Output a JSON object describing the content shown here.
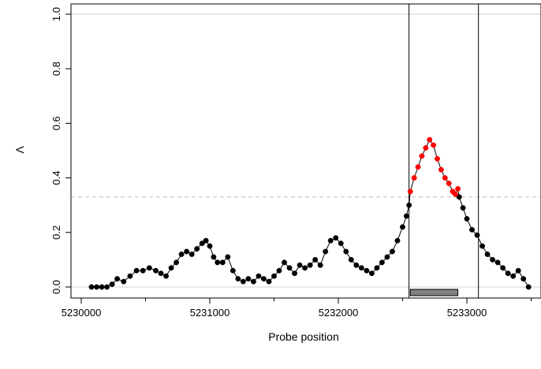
{
  "chart_data": {
    "type": "scatter",
    "title": "",
    "xlabel": "Probe position",
    "ylabel": "Λ",
    "xlim": [
      5230000,
      5233500
    ],
    "ylim": [
      0,
      1.0
    ],
    "x_ticks": [
      5230000,
      5231000,
      5232000,
      5233000
    ],
    "x_tick_labels": [
      "5230000",
      "5231000",
      "5232000",
      "5233000"
    ],
    "y_ticks": [
      0.0,
      0.2,
      0.4,
      0.6,
      0.8,
      1.0
    ],
    "y_tick_labels": [
      "0.0",
      "0.2",
      "0.4",
      "0.6",
      "0.8",
      "1.0"
    ],
    "gridlines_y": [
      0.0,
      1.0
    ],
    "threshold": 0.33,
    "region_lines": [
      5232550,
      5233090
    ],
    "region_bar": [
      5232560,
      5232930
    ],
    "colors": {
      "points": "#000000",
      "highlight": "#ff0000",
      "threshold_line": "#c8c8c8",
      "gridline": "#d0d0d0",
      "region_bar_fill": "#808080"
    },
    "series": [
      {
        "color": "#000000",
        "x": [
          5230080,
          5230120,
          5230160,
          5230200,
          5230240,
          5230280,
          5230330,
          5230380,
          5230430,
          5230480,
          5230530,
          5230580,
          5230620,
          5230660,
          5230700,
          5230740,
          5230780,
          5230820,
          5230860,
          5230900,
          5230940,
          5230970,
          5231000,
          5231030,
          5231060,
          5231100,
          5231140,
          5231180,
          5231220,
          5231260,
          5231300,
          5231340,
          5231380,
          5231420,
          5231460,
          5231500,
          5231540,
          5231580,
          5231620,
          5231660,
          5231700,
          5231740,
          5231780,
          5231820,
          5231860,
          5231900,
          5231940,
          5231980,
          5232020,
          5232060,
          5232100,
          5232140,
          5232180,
          5232220,
          5232260,
          5232300,
          5232340,
          5232380,
          5232420,
          5232460,
          5232500,
          5232530,
          5232550,
          5232940,
          5232970,
          5233000,
          5233040,
          5233080,
          5233120,
          5233160,
          5233200,
          5233240,
          5233280,
          5233320,
          5233360,
          5233400,
          5233440,
          5233480
        ],
        "y": [
          0.0,
          0.0,
          0.0,
          0.0,
          0.01,
          0.03,
          0.02,
          0.04,
          0.06,
          0.06,
          0.07,
          0.06,
          0.05,
          0.04,
          0.07,
          0.09,
          0.12,
          0.13,
          0.12,
          0.14,
          0.16,
          0.17,
          0.15,
          0.11,
          0.09,
          0.09,
          0.11,
          0.06,
          0.03,
          0.02,
          0.03,
          0.02,
          0.04,
          0.03,
          0.02,
          0.04,
          0.06,
          0.09,
          0.07,
          0.05,
          0.08,
          0.07,
          0.08,
          0.1,
          0.08,
          0.13,
          0.17,
          0.18,
          0.16,
          0.13,
          0.1,
          0.08,
          0.07,
          0.06,
          0.05,
          0.07,
          0.09,
          0.11,
          0.13,
          0.17,
          0.22,
          0.26,
          0.3,
          0.33,
          0.29,
          0.25,
          0.21,
          0.19,
          0.15,
          0.12,
          0.1,
          0.09,
          0.07,
          0.05,
          0.04,
          0.06,
          0.03,
          0.0
        ]
      },
      {
        "color": "#ff0000",
        "x": [
          5232560,
          5232590,
          5232620,
          5232650,
          5232680,
          5232710,
          5232740,
          5232770,
          5232800,
          5232830,
          5232860,
          5232890,
          5232910,
          5232930
        ],
        "y": [
          0.35,
          0.4,
          0.44,
          0.48,
          0.51,
          0.54,
          0.52,
          0.47,
          0.43,
          0.4,
          0.38,
          0.35,
          0.34,
          0.36
        ]
      }
    ]
  }
}
